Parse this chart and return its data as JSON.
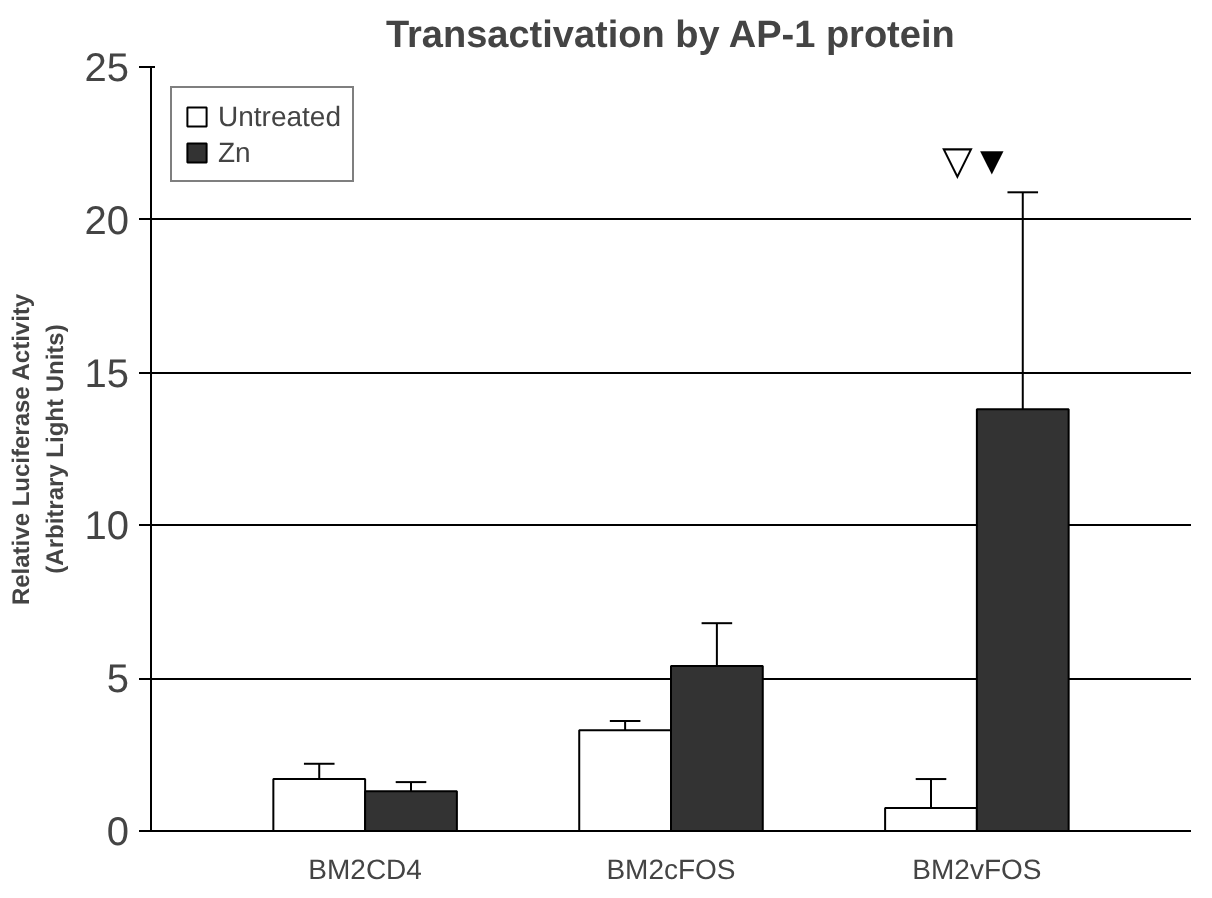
{
  "chart_data": {
    "type": "bar",
    "title": "Transactivation by AP-1 protein",
    "ylabel": "Relative Luciferase Activity\n(Arbitrary Light Units)",
    "categories": [
      "BM2CD4",
      "BM2cFOS",
      "BM2vFOS"
    ],
    "series": [
      {
        "name": "Untreated",
        "color": "#ffffff",
        "values": [
          1.7,
          3.3,
          0.75
        ],
        "errors": [
          [
            1.7,
            2.2
          ],
          [
            3.3,
            3.6
          ],
          [
            0.75,
            1.7
          ]
        ]
      },
      {
        "name": "Zn",
        "color": "#333333",
        "values": [
          1.3,
          5.4,
          13.8
        ],
        "errors": [
          [
            1.3,
            1.6
          ],
          [
            5.4,
            6.8
          ],
          [
            13.8,
            20.9
          ]
        ]
      }
    ],
    "annotations": [
      "▽▼"
    ],
    "ylim": [
      0,
      25
    ],
    "yticks": [
      0,
      5,
      10,
      15,
      20,
      25
    ],
    "grid": "y",
    "legend": "top left"
  }
}
